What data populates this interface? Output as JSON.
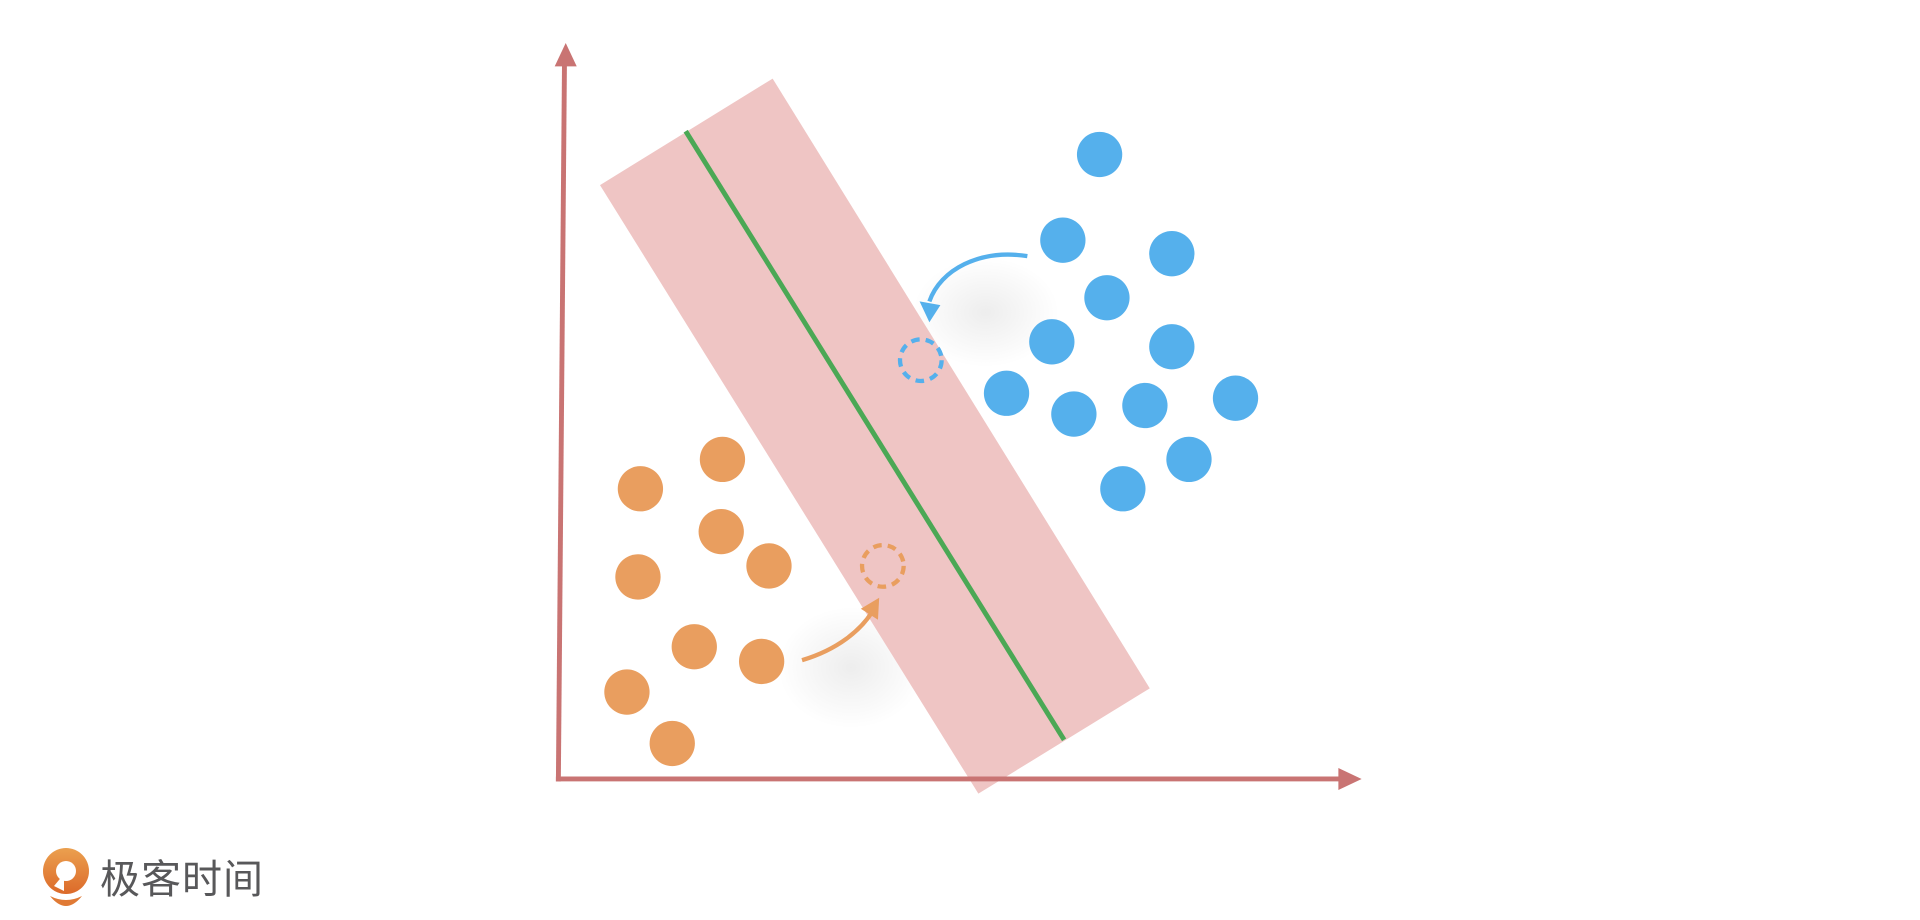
{
  "logo": {
    "text": "极客时间",
    "icon": "geektime-logo-icon"
  },
  "colors": {
    "axis": "#c97473",
    "margin_band": "#efc5c4",
    "decision_line": "#4ba855",
    "class_a": "#55b0ec",
    "class_b": "#e99e5f"
  },
  "diagram": {
    "class_a_count": 12,
    "class_b_count": 9
  }
}
